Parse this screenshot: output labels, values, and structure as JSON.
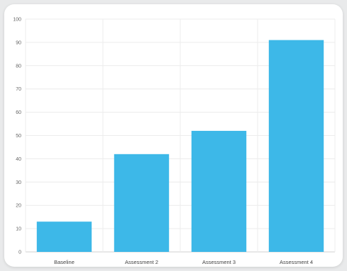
{
  "chart_data": {
    "type": "bar",
    "title": "",
    "xlabel": "",
    "ylabel": "",
    "categories": [
      "Baseline",
      "Assessment 2",
      "Assessment 3",
      "Assessment 4"
    ],
    "values": [
      13,
      42,
      52,
      91
    ],
    "ylim": [
      0,
      100
    ],
    "yticks": [
      "0",
      "10",
      "20",
      "30",
      "40",
      "50",
      "60",
      "70",
      "80",
      "90",
      "100"
    ],
    "grid": true,
    "legend": "none",
    "colors": {
      "bar": "#3db8e8",
      "grid": "#ececec",
      "axis": "#d0d0d0"
    }
  }
}
